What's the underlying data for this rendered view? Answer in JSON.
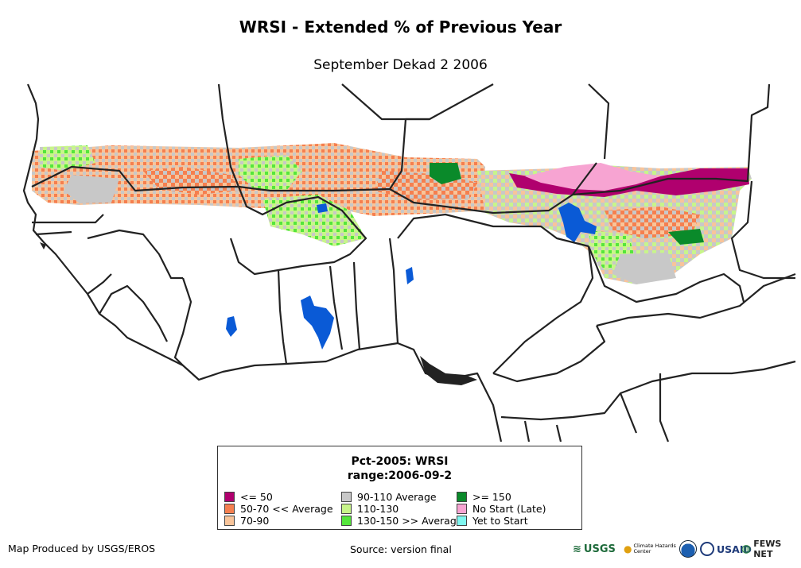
{
  "title": "WRSI - Extended % of Previous Year",
  "subtitle": "September Dekad 2 2006",
  "legend": {
    "title_line1": "Pct-2005: WRSI",
    "title_line2": "range:2006-09-2",
    "items": [
      {
        "label": "<= 50",
        "color": "#b0006e"
      },
      {
        "label": "50-70 << Average",
        "color": "#f57f4f"
      },
      {
        "label": "70-90",
        "color": "#f8c49a"
      },
      {
        "label": "90-110 Average",
        "color": "#c8c8c8"
      },
      {
        "label": "110-130",
        "color": "#c8f58a"
      },
      {
        "label": "130-150 >> Average",
        "color": "#55e63c"
      },
      {
        "label": ">= 150",
        "color": "#0a8a2a"
      },
      {
        "label": "No Start (Late)",
        "color": "#f7a4d2"
      },
      {
        "label": "Yet to Start",
        "color": "#7ff6f0"
      }
    ]
  },
  "footer": {
    "produced_by": "Map Produced by USGS/EROS",
    "source": "Source: version final"
  },
  "logos": {
    "usgs": "USGS",
    "chc": "Climate Hazards Center",
    "usaid": "USAID",
    "fews": "FEWS NET"
  },
  "colors": {
    "water": "#0a5ad6",
    "border": "#222222"
  }
}
